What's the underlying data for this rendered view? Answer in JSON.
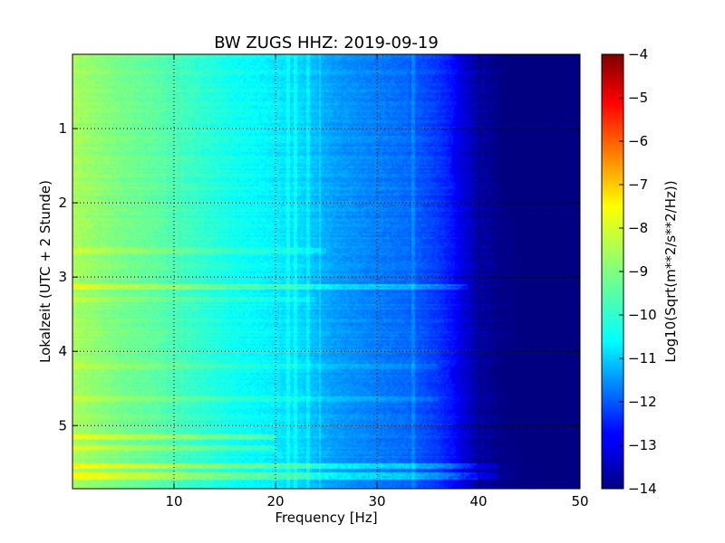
{
  "chart_data": {
    "type": "heatmap",
    "title": "BW ZUGS HHZ: 2019-09-19",
    "xlabel": "Frequency [Hz]",
    "ylabel": "Lokalzeit (UTC + 2 Stunde)",
    "colorbar_label": "Log10(Sqrt(m**2/s**2/Hz))",
    "colormap": "jet",
    "xlim": [
      0,
      50
    ],
    "ylim": [
      5.85,
      0
    ],
    "clim": [
      -14,
      -4
    ],
    "grid": true,
    "x_ticks": [
      10,
      20,
      30,
      40,
      50
    ],
    "x_tick_labels": [
      "10",
      "20",
      "30",
      "40",
      "50"
    ],
    "y_ticks": [
      1,
      2,
      3,
      4,
      5
    ],
    "y_tick_labels": [
      "1",
      "2",
      "3",
      "4",
      "5"
    ],
    "colorbar_ticks": [
      -4,
      -5,
      -6,
      -7,
      -8,
      -9,
      -10,
      -11,
      -12,
      -13,
      -14
    ],
    "colorbar_tick_labels": [
      "−4",
      "−5",
      "−6",
      "−7",
      "−8",
      "−9",
      "−10",
      "−11",
      "−12",
      "−13",
      "−14"
    ],
    "spectrum_profile": {
      "frequency_hz": [
        0,
        2,
        5,
        8,
        10,
        13,
        16,
        19,
        21,
        22.5,
        24.5,
        26,
        30,
        33,
        36,
        37.5,
        38.5,
        40,
        42,
        50
      ],
      "log10_amplitude": [
        -8.6,
        -8.8,
        -9.1,
        -9.3,
        -9.5,
        -9.8,
        -10.1,
        -10.3,
        -10.5,
        -10.6,
        -11.0,
        -11.2,
        -11.5,
        -11.7,
        -12.2,
        -12.6,
        -13.1,
        -13.6,
        -13.9,
        -14.0
      ]
    },
    "features": {
      "spectral_lines_hz": [
        21.2,
        22.0,
        23.2,
        24.4,
        33.6
      ],
      "cutoff_frequency_hz": [
        37.5,
        39.5
      ],
      "cutoff_drift": [
        [
          0,
          38.2
        ],
        [
          1,
          37.6
        ],
        [
          1.5,
          37.2
        ],
        [
          2,
          38.2
        ],
        [
          2.5,
          39.0
        ],
        [
          3,
          39.2
        ],
        [
          3.5,
          39.2
        ],
        [
          4,
          38.6
        ],
        [
          4.3,
          37.0
        ],
        [
          4.6,
          38.2
        ],
        [
          5,
          38.0
        ],
        [
          5.5,
          39.8
        ],
        [
          5.85,
          40.0
        ]
      ],
      "horizontal_bands_hours": [
        {
          "hour": 2.65,
          "f_end_hz": 25,
          "boost": 0.5
        },
        {
          "hour": 3.14,
          "f_end_hz": 39,
          "boost": 0.9
        },
        {
          "hour": 3.3,
          "f_end_hz": 24,
          "boost": 0.35
        },
        {
          "hour": 4.2,
          "f_end_hz": 36,
          "boost": 0.4
        },
        {
          "hour": 4.65,
          "f_end_hz": 36,
          "boost": 0.35
        },
        {
          "hour": 5.15,
          "f_end_hz": 20,
          "boost": 0.9
        },
        {
          "hour": 5.3,
          "f_end_hz": 20,
          "boost": 0.7
        },
        {
          "hour": 5.55,
          "f_end_hz": 43,
          "boost": 1.1
        },
        {
          "hour": 5.68,
          "f_end_hz": 43,
          "boost": 1.0
        }
      ]
    }
  }
}
